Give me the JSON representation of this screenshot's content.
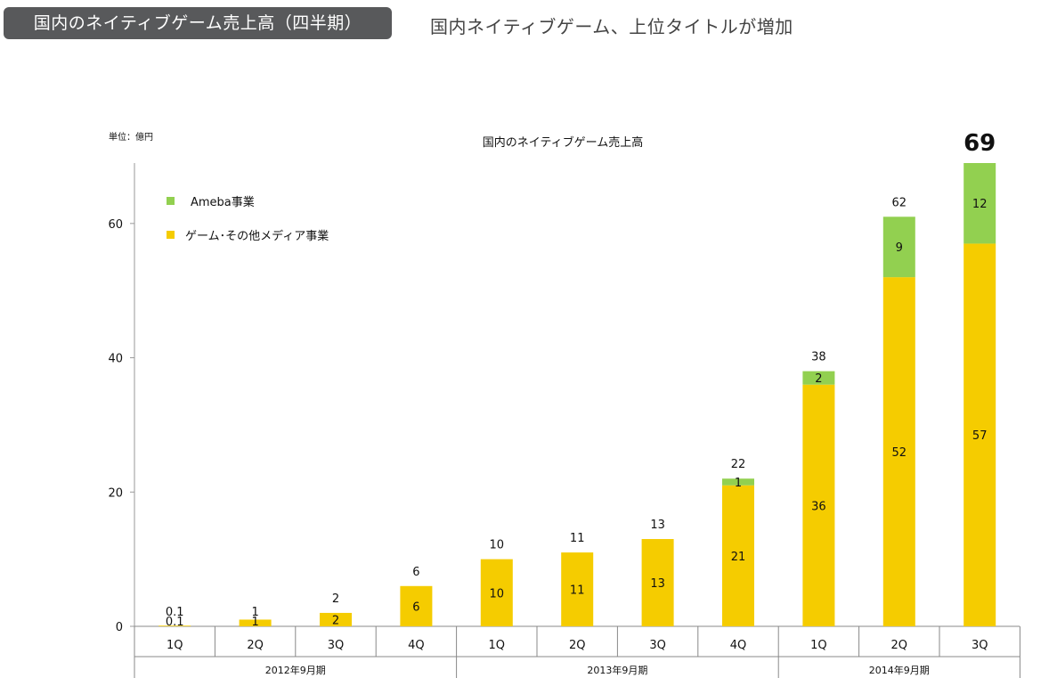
{
  "header": {
    "badge_title": "国内のネイティブゲーム売上高（四半期）",
    "subtitle": "国内ネイティブゲーム、上位タイトルが増加"
  },
  "colors": {
    "ameba": "#92d050",
    "game_other": "#f5cc00",
    "badge_bg": "#58595b"
  },
  "chart_data": {
    "type": "bar",
    "stacked": true,
    "title": "国内のネイティブゲーム売上高",
    "unit_label": "単位：億円",
    "ylim": [
      0,
      69
    ],
    "yticks": [
      0,
      20,
      40,
      60
    ],
    "categories": [
      "1Q",
      "2Q",
      "3Q",
      "4Q",
      "1Q",
      "2Q",
      "3Q",
      "4Q",
      "1Q",
      "2Q",
      "3Q"
    ],
    "groups": [
      {
        "label": "2012年9月期",
        "count": 4
      },
      {
        "label": "2013年9月期",
        "count": 4
      },
      {
        "label": "2014年9月期",
        "count": 3
      }
    ],
    "series": [
      {
        "name": "ゲーム･その他メディア事業",
        "color": "#f5cc00",
        "values": [
          0.1,
          1,
          2,
          6,
          10,
          11,
          13,
          21,
          36,
          52,
          57
        ]
      },
      {
        "name": "Ameba事業",
        "color": "#92d050",
        "values": [
          0,
          0,
          0,
          0,
          0,
          0,
          0,
          1,
          2,
          9,
          12
        ]
      }
    ],
    "segment_labels": {
      "game_other": [
        "0.1",
        "1",
        "2",
        "6",
        "10",
        "11",
        "13",
        "21",
        "36",
        "52",
        "57"
      ],
      "ameba": [
        "",
        "",
        "",
        "",
        "",
        "",
        "",
        "1",
        "2",
        "9",
        "12"
      ]
    },
    "totals": [
      "0.1",
      "1",
      "2",
      "6",
      "10",
      "11",
      "13",
      "22",
      "38",
      "62",
      "69"
    ],
    "legend": [
      {
        "name": "Ameba事業",
        "color": "#92d050"
      },
      {
        "name": "ゲーム･その他メディア事業",
        "color": "#f5cc00"
      }
    ],
    "legend_position": "top-left",
    "grid": false
  }
}
